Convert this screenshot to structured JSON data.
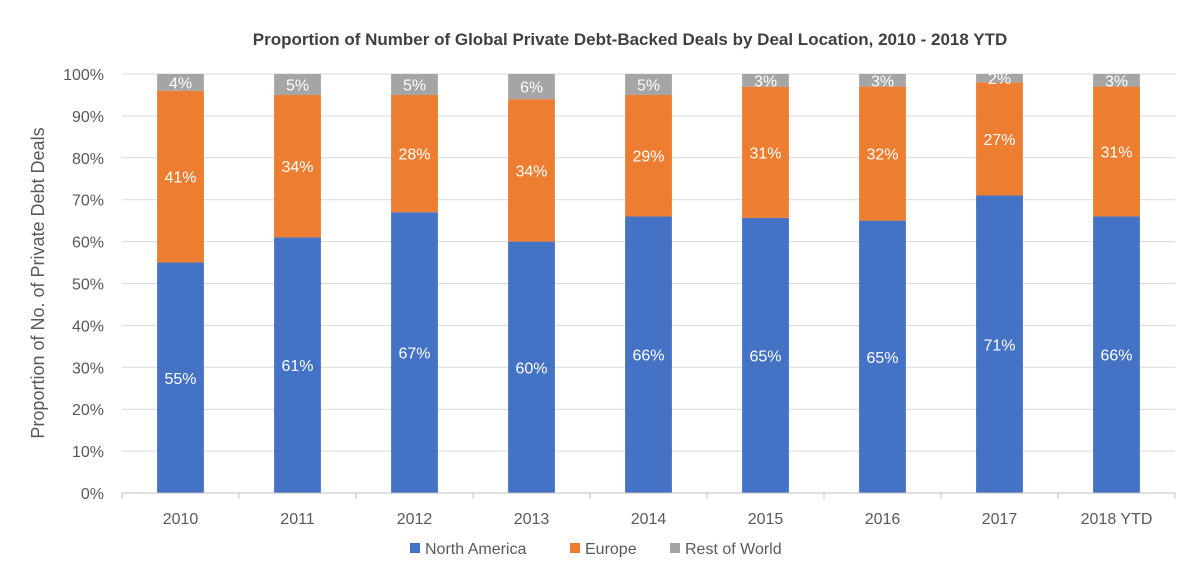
{
  "chart_data": {
    "type": "bar",
    "stacked": true,
    "title": "Proportion of Number of Global Private Debt-Backed Deals by Deal Location, 2010 - 2018 YTD",
    "xlabel": "",
    "ylabel": "Proportion of No. of Private Debt Deals",
    "ylim": [
      0,
      100
    ],
    "yticks": [
      "0%",
      "10%",
      "20%",
      "30%",
      "40%",
      "50%",
      "60%",
      "70%",
      "80%",
      "90%",
      "100%"
    ],
    "categories": [
      "2010",
      "2011",
      "2012",
      "2013",
      "2014",
      "2015",
      "2016",
      "2017",
      "2018 YTD"
    ],
    "series": [
      {
        "name": "North America",
        "color": "#4472C4",
        "values": [
          55,
          61,
          67,
          60,
          66,
          65,
          65,
          71,
          66
        ],
        "labels": [
          "55%",
          "61%",
          "67%",
          "60%",
          "66%",
          "65%",
          "65%",
          "71%",
          "66%"
        ]
      },
      {
        "name": "Europe",
        "color": "#ED7D31",
        "values": [
          41,
          34,
          28,
          34,
          29,
          31,
          32,
          27,
          31
        ],
        "labels": [
          "41%",
          "34%",
          "28%",
          "34%",
          "29%",
          "31%",
          "32%",
          "27%",
          "31%"
        ]
      },
      {
        "name": "Rest of World",
        "color": "#A5A5A5",
        "values": [
          4,
          5,
          5,
          6,
          5,
          3,
          3,
          2,
          3
        ],
        "labels": [
          "4%",
          "5%",
          "5%",
          "6%",
          "5%",
          "3%",
          "3%",
          "2%",
          "3%"
        ]
      }
    ],
    "grid": true,
    "legend_position": "bottom"
  }
}
